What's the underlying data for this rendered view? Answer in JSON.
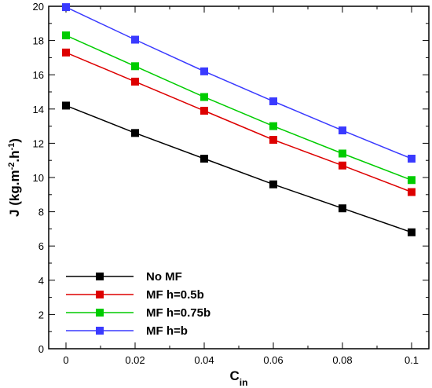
{
  "chart_data": {
    "type": "line",
    "title": "",
    "xlabel": "C",
    "xlabel_sub": "in",
    "ylabel": "J (kg.m-2.h-1)",
    "xlim": [
      -0.005,
      0.105
    ],
    "ylim": [
      0,
      20
    ],
    "x_ticks": [
      0,
      0.02,
      0.04,
      0.06,
      0.08,
      0.1
    ],
    "x_tick_labels": [
      "0",
      "0.02",
      "0.04",
      "0.06",
      "0.08",
      "0.1"
    ],
    "y_ticks": [
      0,
      2,
      4,
      6,
      8,
      10,
      12,
      14,
      16,
      18,
      20
    ],
    "y_tick_labels": [
      "0",
      "2",
      "4",
      "6",
      "8",
      "10",
      "12",
      "14",
      "16",
      "18",
      "20"
    ],
    "x": [
      0,
      0.02,
      0.04,
      0.06,
      0.08,
      0.1
    ],
    "grid": false,
    "legend_position": "bottom-left",
    "marker": "square",
    "series": [
      {
        "name": "No MF",
        "color": "#000000",
        "values": [
          14.2,
          12.6,
          11.1,
          9.6,
          8.2,
          6.8
        ]
      },
      {
        "name": "MF h=0.5b",
        "color": "#dd0000",
        "values": [
          17.3,
          15.6,
          13.9,
          12.2,
          10.7,
          9.15
        ]
      },
      {
        "name": "MF h=0.75b",
        "color": "#00cc00",
        "values": [
          18.3,
          16.5,
          14.7,
          13.0,
          11.4,
          9.85
        ]
      },
      {
        "name": "MF h=b",
        "color": "#3a3aff",
        "values": [
          19.95,
          18.05,
          16.2,
          14.45,
          12.75,
          11.1
        ]
      }
    ]
  }
}
